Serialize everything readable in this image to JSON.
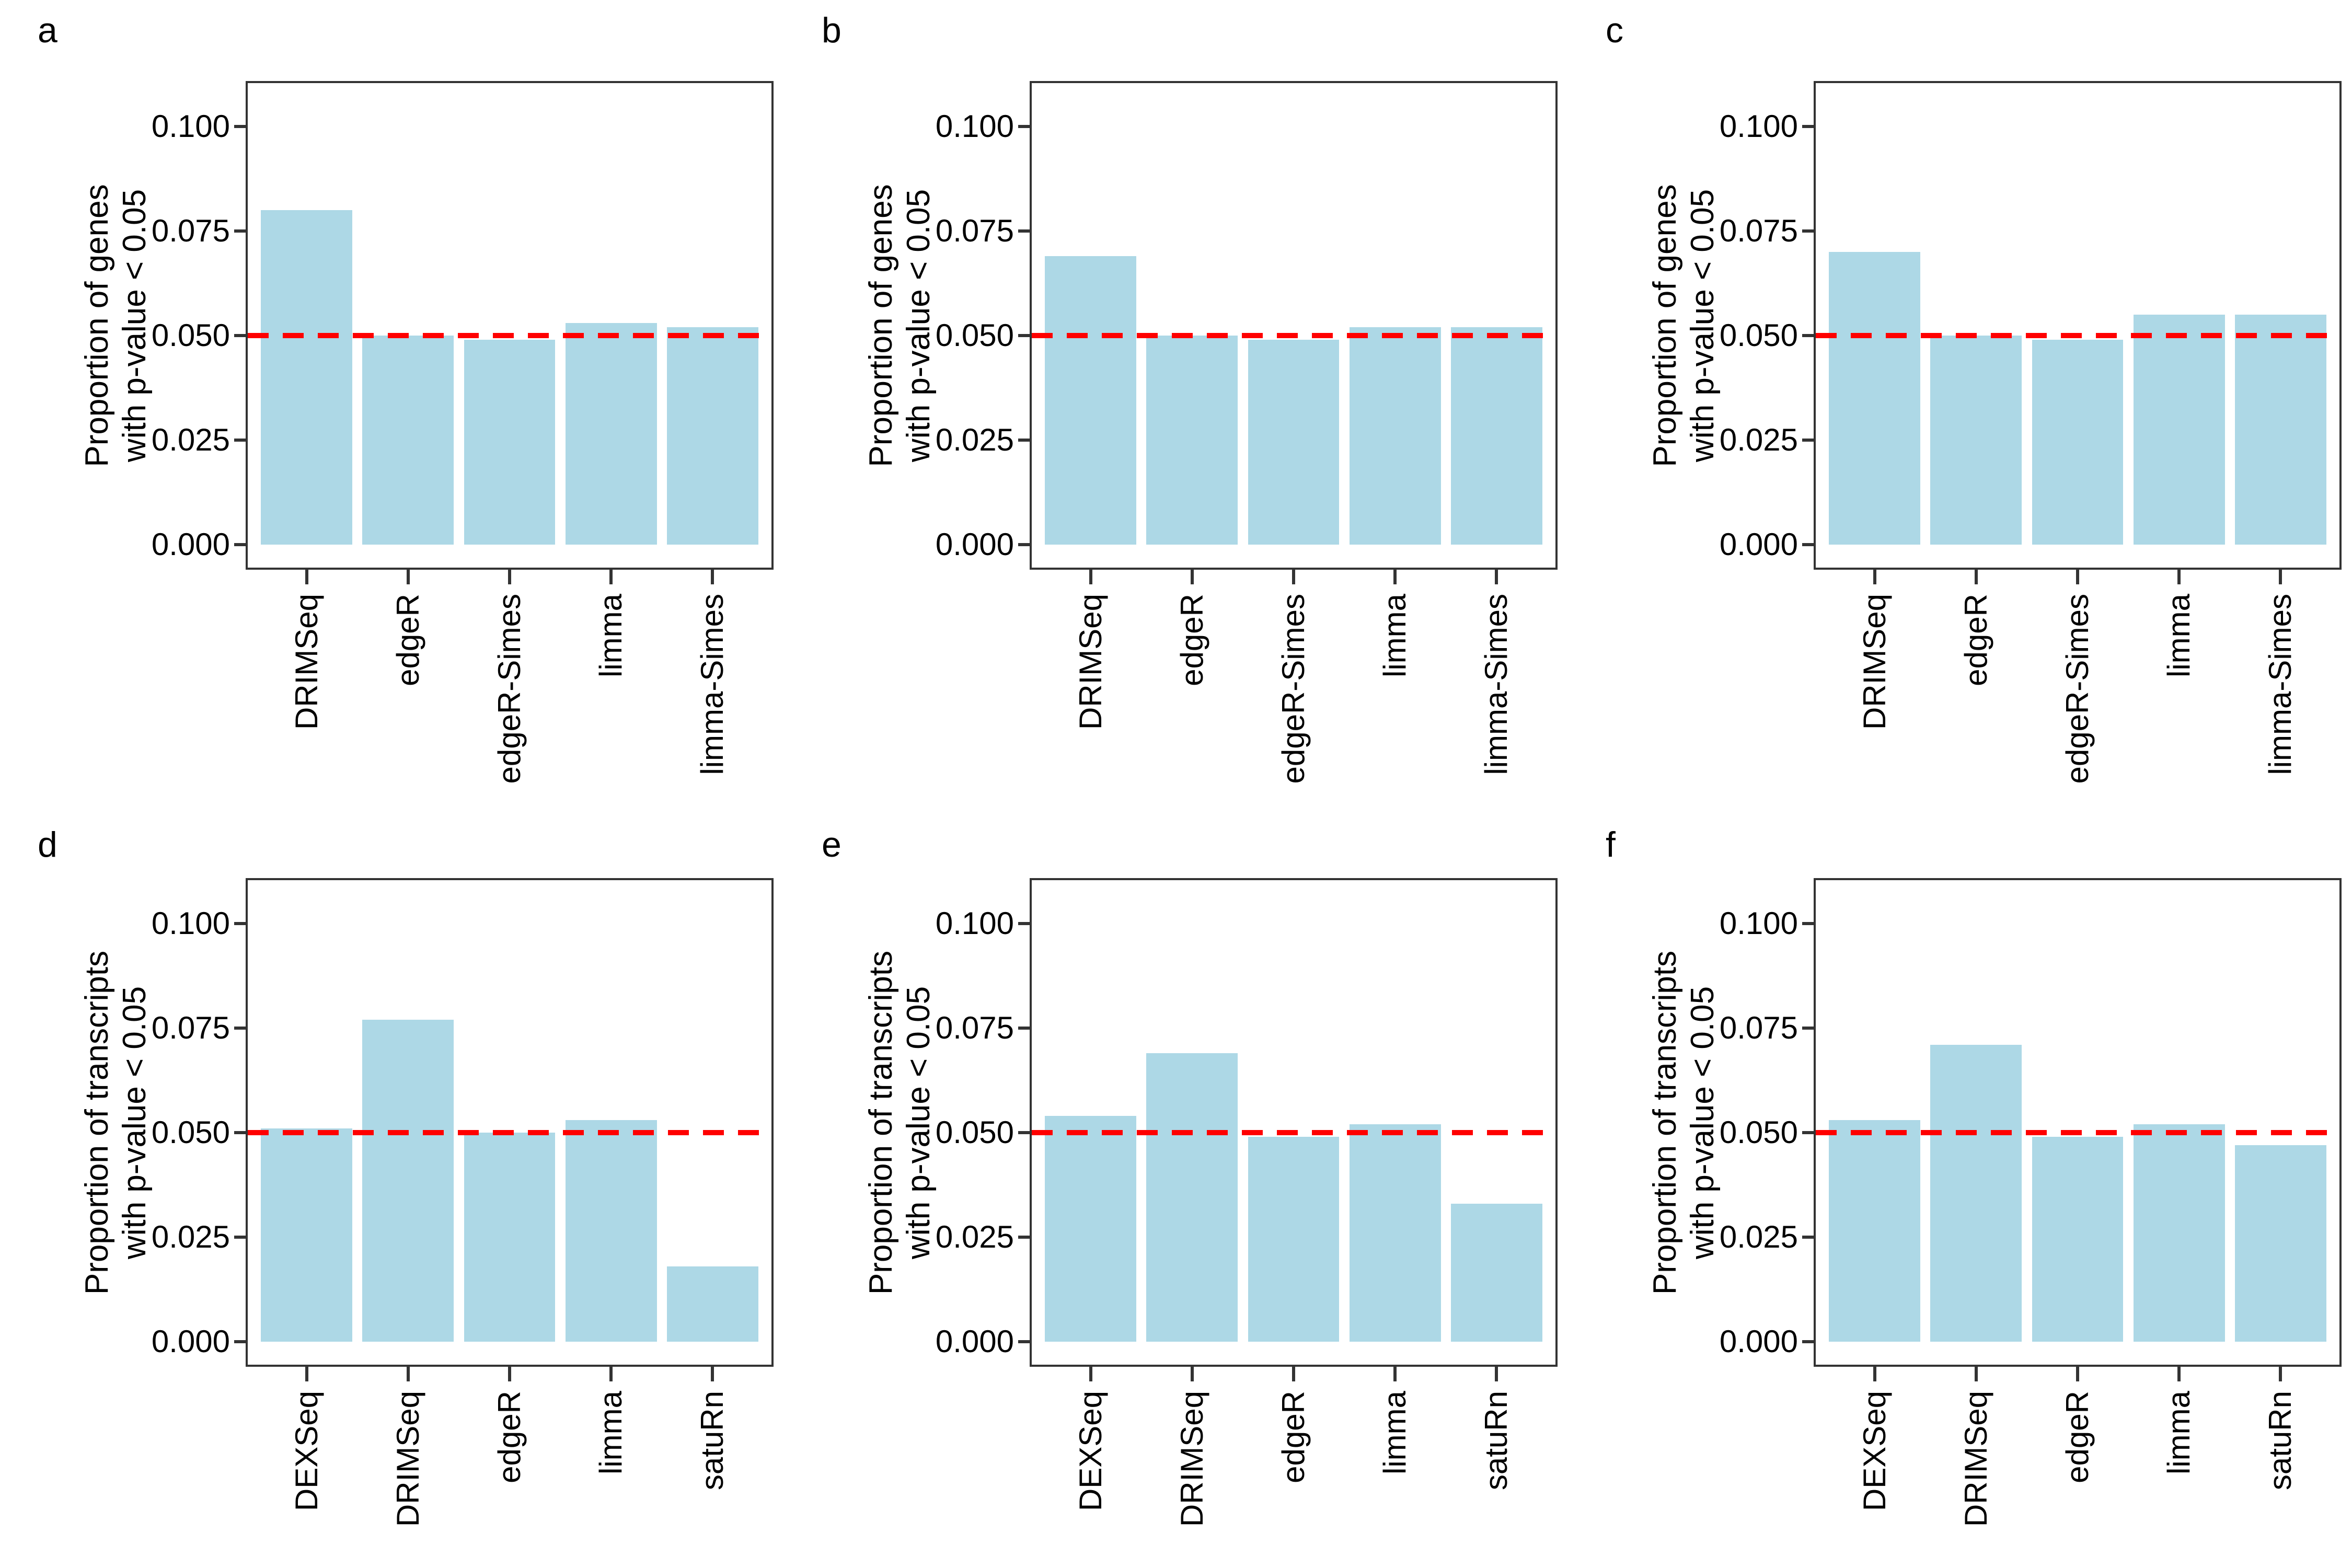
{
  "figure": {
    "background": "#FFFFFF",
    "bar_color": "#ADD8E6",
    "threshold_line_color": "#FF0000",
    "panel_border_color": "#333333",
    "text_color": "#000000"
  },
  "chart_data": [
    {
      "type": "bar",
      "panel_label": "a",
      "ylabel_lines": [
        "Proportion of genes",
        "with p-value < 0.05"
      ],
      "categories": [
        "DRIMSeq",
        "edgeR",
        "edgeR-Simes",
        "limma",
        "limma-Simes"
      ],
      "values": [
        0.08,
        0.05,
        0.049,
        0.053,
        0.052
      ],
      "threshold": 0.05,
      "yticks": {
        "values": [
          0.0,
          0.025,
          0.05,
          0.075,
          0.1
        ],
        "labels": [
          "0.000",
          "0.025",
          "0.050",
          "0.075",
          "0.100"
        ]
      },
      "ylim": [
        0,
        0.111
      ],
      "grid": false,
      "legend": false
    },
    {
      "type": "bar",
      "panel_label": "b",
      "ylabel_lines": [
        "Proportion of genes",
        "with p-value < 0.05"
      ],
      "categories": [
        "DRIMSeq",
        "edgeR",
        "edgeR-Simes",
        "limma",
        "limma-Simes"
      ],
      "values": [
        0.069,
        0.05,
        0.049,
        0.052,
        0.052
      ],
      "threshold": 0.05,
      "yticks": {
        "values": [
          0.0,
          0.025,
          0.05,
          0.075,
          0.1
        ],
        "labels": [
          "0.000",
          "0.025",
          "0.050",
          "0.075",
          "0.100"
        ]
      },
      "ylim": [
        0,
        0.111
      ],
      "grid": false,
      "legend": false
    },
    {
      "type": "bar",
      "panel_label": "c",
      "ylabel_lines": [
        "Proportion of genes",
        "with p-value < 0.05"
      ],
      "categories": [
        "DRIMSeq",
        "edgeR",
        "edgeR-Simes",
        "limma",
        "limma-Simes"
      ],
      "values": [
        0.07,
        0.05,
        0.049,
        0.055,
        0.055
      ],
      "threshold": 0.05,
      "yticks": {
        "values": [
          0.0,
          0.025,
          0.05,
          0.075,
          0.1
        ],
        "labels": [
          "0.000",
          "0.025",
          "0.050",
          "0.075",
          "0.100"
        ]
      },
      "ylim": [
        0,
        0.111
      ],
      "grid": false,
      "legend": false
    },
    {
      "type": "bar",
      "panel_label": "d",
      "ylabel_lines": [
        "Proportion of transcripts",
        "with p-value < 0.05"
      ],
      "categories": [
        "DEXSeq",
        "DRIMSeq",
        "edgeR",
        "limma",
        "satuRn"
      ],
      "values": [
        0.051,
        0.077,
        0.05,
        0.053,
        0.018
      ],
      "threshold": 0.05,
      "yticks": {
        "values": [
          0.0,
          0.025,
          0.05,
          0.075,
          0.1
        ],
        "labels": [
          "0.000",
          "0.025",
          "0.050",
          "0.075",
          "0.100"
        ]
      },
      "ylim": [
        0,
        0.111
      ],
      "grid": false,
      "legend": false
    },
    {
      "type": "bar",
      "panel_label": "e",
      "ylabel_lines": [
        "Proportion of transcripts",
        "with p-value < 0.05"
      ],
      "categories": [
        "DEXSeq",
        "DRIMSeq",
        "edgeR",
        "limma",
        "satuRn"
      ],
      "values": [
        0.054,
        0.069,
        0.049,
        0.052,
        0.033
      ],
      "threshold": 0.05,
      "yticks": {
        "values": [
          0.0,
          0.025,
          0.05,
          0.075,
          0.1
        ],
        "labels": [
          "0.000",
          "0.025",
          "0.050",
          "0.075",
          "0.100"
        ]
      },
      "ylim": [
        0,
        0.111
      ],
      "grid": false,
      "legend": false
    },
    {
      "type": "bar",
      "panel_label": "f",
      "ylabel_lines": [
        "Proportion of transcripts",
        "with p-value < 0.05"
      ],
      "categories": [
        "DEXSeq",
        "DRIMSeq",
        "edgeR",
        "limma",
        "satuRn"
      ],
      "values": [
        0.053,
        0.071,
        0.049,
        0.052,
        0.047
      ],
      "threshold": 0.05,
      "yticks": {
        "values": [
          0.0,
          0.025,
          0.05,
          0.075,
          0.1
        ],
        "labels": [
          "0.000",
          "0.025",
          "0.050",
          "0.075",
          "0.100"
        ]
      },
      "ylim": [
        0,
        0.111
      ],
      "grid": false,
      "legend": false
    }
  ]
}
